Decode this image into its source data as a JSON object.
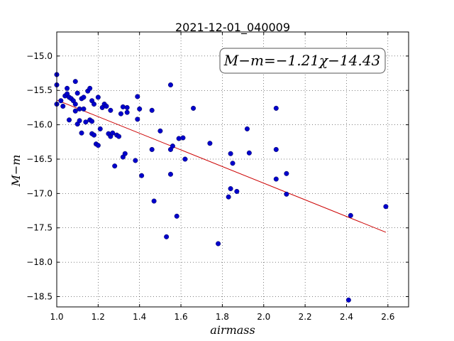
{
  "chart_data": {
    "type": "scatter",
    "title": "2021-12-01_040009",
    "xlabel": "airmass",
    "ylabel": "M−m",
    "annotation": "M−m=−1.21χ−14.43",
    "xlim": [
      1.0,
      2.7
    ],
    "ylim": [
      -18.65,
      -14.65
    ],
    "xticks": [
      1.0,
      1.2,
      1.4,
      1.6,
      1.8,
      2.0,
      2.2,
      2.4,
      2.6
    ],
    "xtick_labels": [
      "1.0",
      "1.2",
      "1.4",
      "1.6",
      "1.8",
      "2.0",
      "2.2",
      "2.4",
      "2.6"
    ],
    "yticks": [
      -15.0,
      -15.5,
      -16.0,
      -16.5,
      -17.0,
      -17.5,
      -18.0,
      -18.5
    ],
    "ytick_labels": [
      "−15.0",
      "−15.5",
      "−16.0",
      "−16.5",
      "−17.0",
      "−17.5",
      "−18.0",
      "−18.5"
    ],
    "grid": true,
    "series": [
      {
        "color": "#0000cc",
        "x": [
          1.0,
          1.0,
          1.0,
          1.02,
          1.03,
          1.04,
          1.05,
          1.05,
          1.06,
          1.06,
          1.07,
          1.08,
          1.09,
          1.09,
          1.09,
          1.1,
          1.1,
          1.11,
          1.11,
          1.12,
          1.12,
          1.13,
          1.13,
          1.14,
          1.15,
          1.16,
          1.16,
          1.17,
          1.17,
          1.17,
          1.18,
          1.18,
          1.19,
          1.2,
          1.2,
          1.21,
          1.22,
          1.23,
          1.24,
          1.25,
          1.26,
          1.26,
          1.27,
          1.28,
          1.29,
          1.3,
          1.31,
          1.32,
          1.32,
          1.33,
          1.34,
          1.34,
          1.38,
          1.39,
          1.39,
          1.4,
          1.41,
          1.46,
          1.46,
          1.47,
          1.5,
          1.53,
          1.55,
          1.55,
          1.55,
          1.56,
          1.58,
          1.59,
          1.61,
          1.62,
          1.66,
          1.74,
          1.78,
          1.83,
          1.84,
          1.84,
          1.85,
          1.87,
          1.92,
          1.93,
          2.06,
          2.06,
          2.06,
          2.11,
          2.11,
          2.41,
          2.42,
          2.59
        ],
        "y": [
          -15.27,
          -15.42,
          -15.7,
          -15.65,
          -15.73,
          -15.58,
          -15.47,
          -15.55,
          -15.93,
          -15.6,
          -15.62,
          -15.65,
          -15.37,
          -15.8,
          -15.7,
          -15.54,
          -15.99,
          -15.77,
          -15.94,
          -16.12,
          -15.62,
          -15.6,
          -15.77,
          -15.96,
          -15.51,
          -15.47,
          -15.93,
          -16.13,
          -15.95,
          -15.65,
          -15.7,
          -16.15,
          -16.28,
          -16.3,
          -15.6,
          -16.06,
          -15.75,
          -15.7,
          -15.73,
          -16.13,
          -16.17,
          -15.79,
          -16.12,
          -16.6,
          -16.15,
          -16.17,
          -15.84,
          -16.47,
          -15.74,
          -16.42,
          -15.82,
          -15.75,
          -16.52,
          -15.59,
          -15.92,
          -15.77,
          -16.74,
          -15.79,
          -16.36,
          -17.11,
          -16.09,
          -17.63,
          -15.42,
          -16.72,
          -16.36,
          -16.31,
          -17.33,
          -16.2,
          -16.19,
          -16.5,
          -15.76,
          -16.27,
          -17.73,
          -17.05,
          -16.42,
          -16.93,
          -16.56,
          -16.97,
          -16.06,
          -16.41,
          -15.76,
          -16.36,
          -16.79,
          -16.71,
          -17.01,
          -18.55,
          -17.32,
          -17.19
        ]
      }
    ],
    "fit_line": {
      "slope": -1.21,
      "intercept": -14.43,
      "x_range": [
        1.0,
        2.59
      ],
      "color": "#cc0000"
    }
  }
}
